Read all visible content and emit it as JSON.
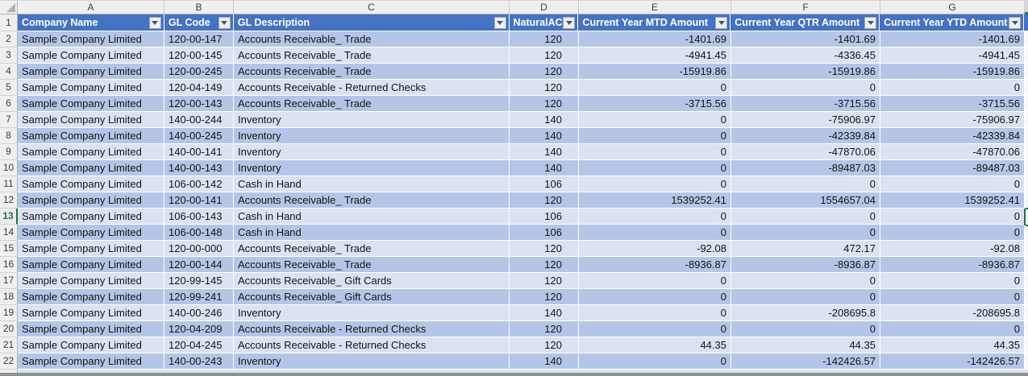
{
  "sheet": {
    "column_letters": [
      "A",
      "B",
      "C",
      "D",
      "E",
      "F",
      "G"
    ],
    "headers": [
      "Company Name",
      "GL Code",
      "GL Description",
      "NaturalAC",
      "Current Year MTD Amount",
      "Current Year QTR Amount",
      "Current Year YTD Amount"
    ],
    "header_row_number": "1",
    "selected_row": 13,
    "rows": [
      {
        "n": "2",
        "company": "Sample Company Limited",
        "gl_code": "120-00-147",
        "gl_desc": "Accounts Receivable_ Trade",
        "natural_ac": "120",
        "mtd": "-1401.69",
        "qtr": "-1401.69",
        "ytd": "-1401.69"
      },
      {
        "n": "3",
        "company": "Sample Company Limited",
        "gl_code": "120-00-145",
        "gl_desc": "Accounts Receivable_ Trade",
        "natural_ac": "120",
        "mtd": "-4941.45",
        "qtr": "-4336.45",
        "ytd": "-4941.45"
      },
      {
        "n": "4",
        "company": "Sample Company Limited",
        "gl_code": "120-00-245",
        "gl_desc": "Accounts Receivable_ Trade",
        "natural_ac": "120",
        "mtd": "-15919.86",
        "qtr": "-15919.86",
        "ytd": "-15919.86"
      },
      {
        "n": "5",
        "company": "Sample Company Limited",
        "gl_code": "120-04-149",
        "gl_desc": "Accounts Receivable - Returned Checks",
        "natural_ac": "120",
        "mtd": "0",
        "qtr": "0",
        "ytd": "0"
      },
      {
        "n": "6",
        "company": "Sample Company Limited",
        "gl_code": "120-00-143",
        "gl_desc": "Accounts Receivable_ Trade",
        "natural_ac": "120",
        "mtd": "-3715.56",
        "qtr": "-3715.56",
        "ytd": "-3715.56"
      },
      {
        "n": "7",
        "company": "Sample Company Limited",
        "gl_code": "140-00-244",
        "gl_desc": "Inventory",
        "natural_ac": "140",
        "mtd": "0",
        "qtr": "-75906.97",
        "ytd": "-75906.97"
      },
      {
        "n": "8",
        "company": "Sample Company Limited",
        "gl_code": "140-00-245",
        "gl_desc": "Inventory",
        "natural_ac": "140",
        "mtd": "0",
        "qtr": "-42339.84",
        "ytd": "-42339.84"
      },
      {
        "n": "9",
        "company": "Sample Company Limited",
        "gl_code": "140-00-141",
        "gl_desc": "Inventory",
        "natural_ac": "140",
        "mtd": "0",
        "qtr": "-47870.06",
        "ytd": "-47870.06"
      },
      {
        "n": "10",
        "company": "Sample Company Limited",
        "gl_code": "140-00-143",
        "gl_desc": "Inventory",
        "natural_ac": "140",
        "mtd": "0",
        "qtr": "-89487.03",
        "ytd": "-89487.03"
      },
      {
        "n": "11",
        "company": "Sample Company Limited",
        "gl_code": "106-00-142",
        "gl_desc": "Cash in Hand",
        "natural_ac": "106",
        "mtd": "0",
        "qtr": "0",
        "ytd": "0"
      },
      {
        "n": "12",
        "company": "Sample Company Limited",
        "gl_code": "120-00-141",
        "gl_desc": "Accounts Receivable_ Trade",
        "natural_ac": "120",
        "mtd": "1539252.41",
        "qtr": "1554657.04",
        "ytd": "1539252.41"
      },
      {
        "n": "13",
        "company": "Sample Company Limited",
        "gl_code": "106-00-143",
        "gl_desc": "Cash in Hand",
        "natural_ac": "106",
        "mtd": "0",
        "qtr": "0",
        "ytd": "0"
      },
      {
        "n": "14",
        "company": "Sample Company Limited",
        "gl_code": "106-00-148",
        "gl_desc": "Cash in Hand",
        "natural_ac": "106",
        "mtd": "0",
        "qtr": "0",
        "ytd": "0"
      },
      {
        "n": "15",
        "company": "Sample Company Limited",
        "gl_code": "120-00-000",
        "gl_desc": "Accounts Receivable_ Trade",
        "natural_ac": "120",
        "mtd": "-92.08",
        "qtr": "472.17",
        "ytd": "-92.08"
      },
      {
        "n": "16",
        "company": "Sample Company Limited",
        "gl_code": "120-00-144",
        "gl_desc": "Accounts Receivable_ Trade",
        "natural_ac": "120",
        "mtd": "-8936.87",
        "qtr": "-8936.87",
        "ytd": "-8936.87"
      },
      {
        "n": "17",
        "company": "Sample Company Limited",
        "gl_code": "120-99-145",
        "gl_desc": "Accounts Receivable_ Gift Cards",
        "natural_ac": "120",
        "mtd": "0",
        "qtr": "0",
        "ytd": "0"
      },
      {
        "n": "18",
        "company": "Sample Company Limited",
        "gl_code": "120-99-241",
        "gl_desc": "Accounts Receivable_ Gift Cards",
        "natural_ac": "120",
        "mtd": "0",
        "qtr": "0",
        "ytd": "0"
      },
      {
        "n": "19",
        "company": "Sample Company Limited",
        "gl_code": "140-00-246",
        "gl_desc": "Inventory",
        "natural_ac": "140",
        "mtd": "0",
        "qtr": "-208695.8",
        "ytd": "-208695.8"
      },
      {
        "n": "20",
        "company": "Sample Company Limited",
        "gl_code": "120-04-209",
        "gl_desc": "Accounts Receivable - Returned Checks",
        "natural_ac": "120",
        "mtd": "0",
        "qtr": "0",
        "ytd": "0"
      },
      {
        "n": "21",
        "company": "Sample Company Limited",
        "gl_code": "120-04-245",
        "gl_desc": "Accounts Receivable - Returned Checks",
        "natural_ac": "120",
        "mtd": "44.35",
        "qtr": "44.35",
        "ytd": "44.35"
      },
      {
        "n": "22",
        "company": "Sample Company Limited",
        "gl_code": "140-00-243",
        "gl_desc": "Inventory",
        "natural_ac": "140",
        "mtd": "0",
        "qtr": "-142426.57",
        "ytd": "-142426.57"
      }
    ]
  },
  "colors": {
    "header_bg": "#4472c4",
    "band_primary": "#b4c6e7",
    "band_secondary": "#dbe2f1",
    "frame_bg": "#efefef",
    "selection_green": "#217346"
  }
}
